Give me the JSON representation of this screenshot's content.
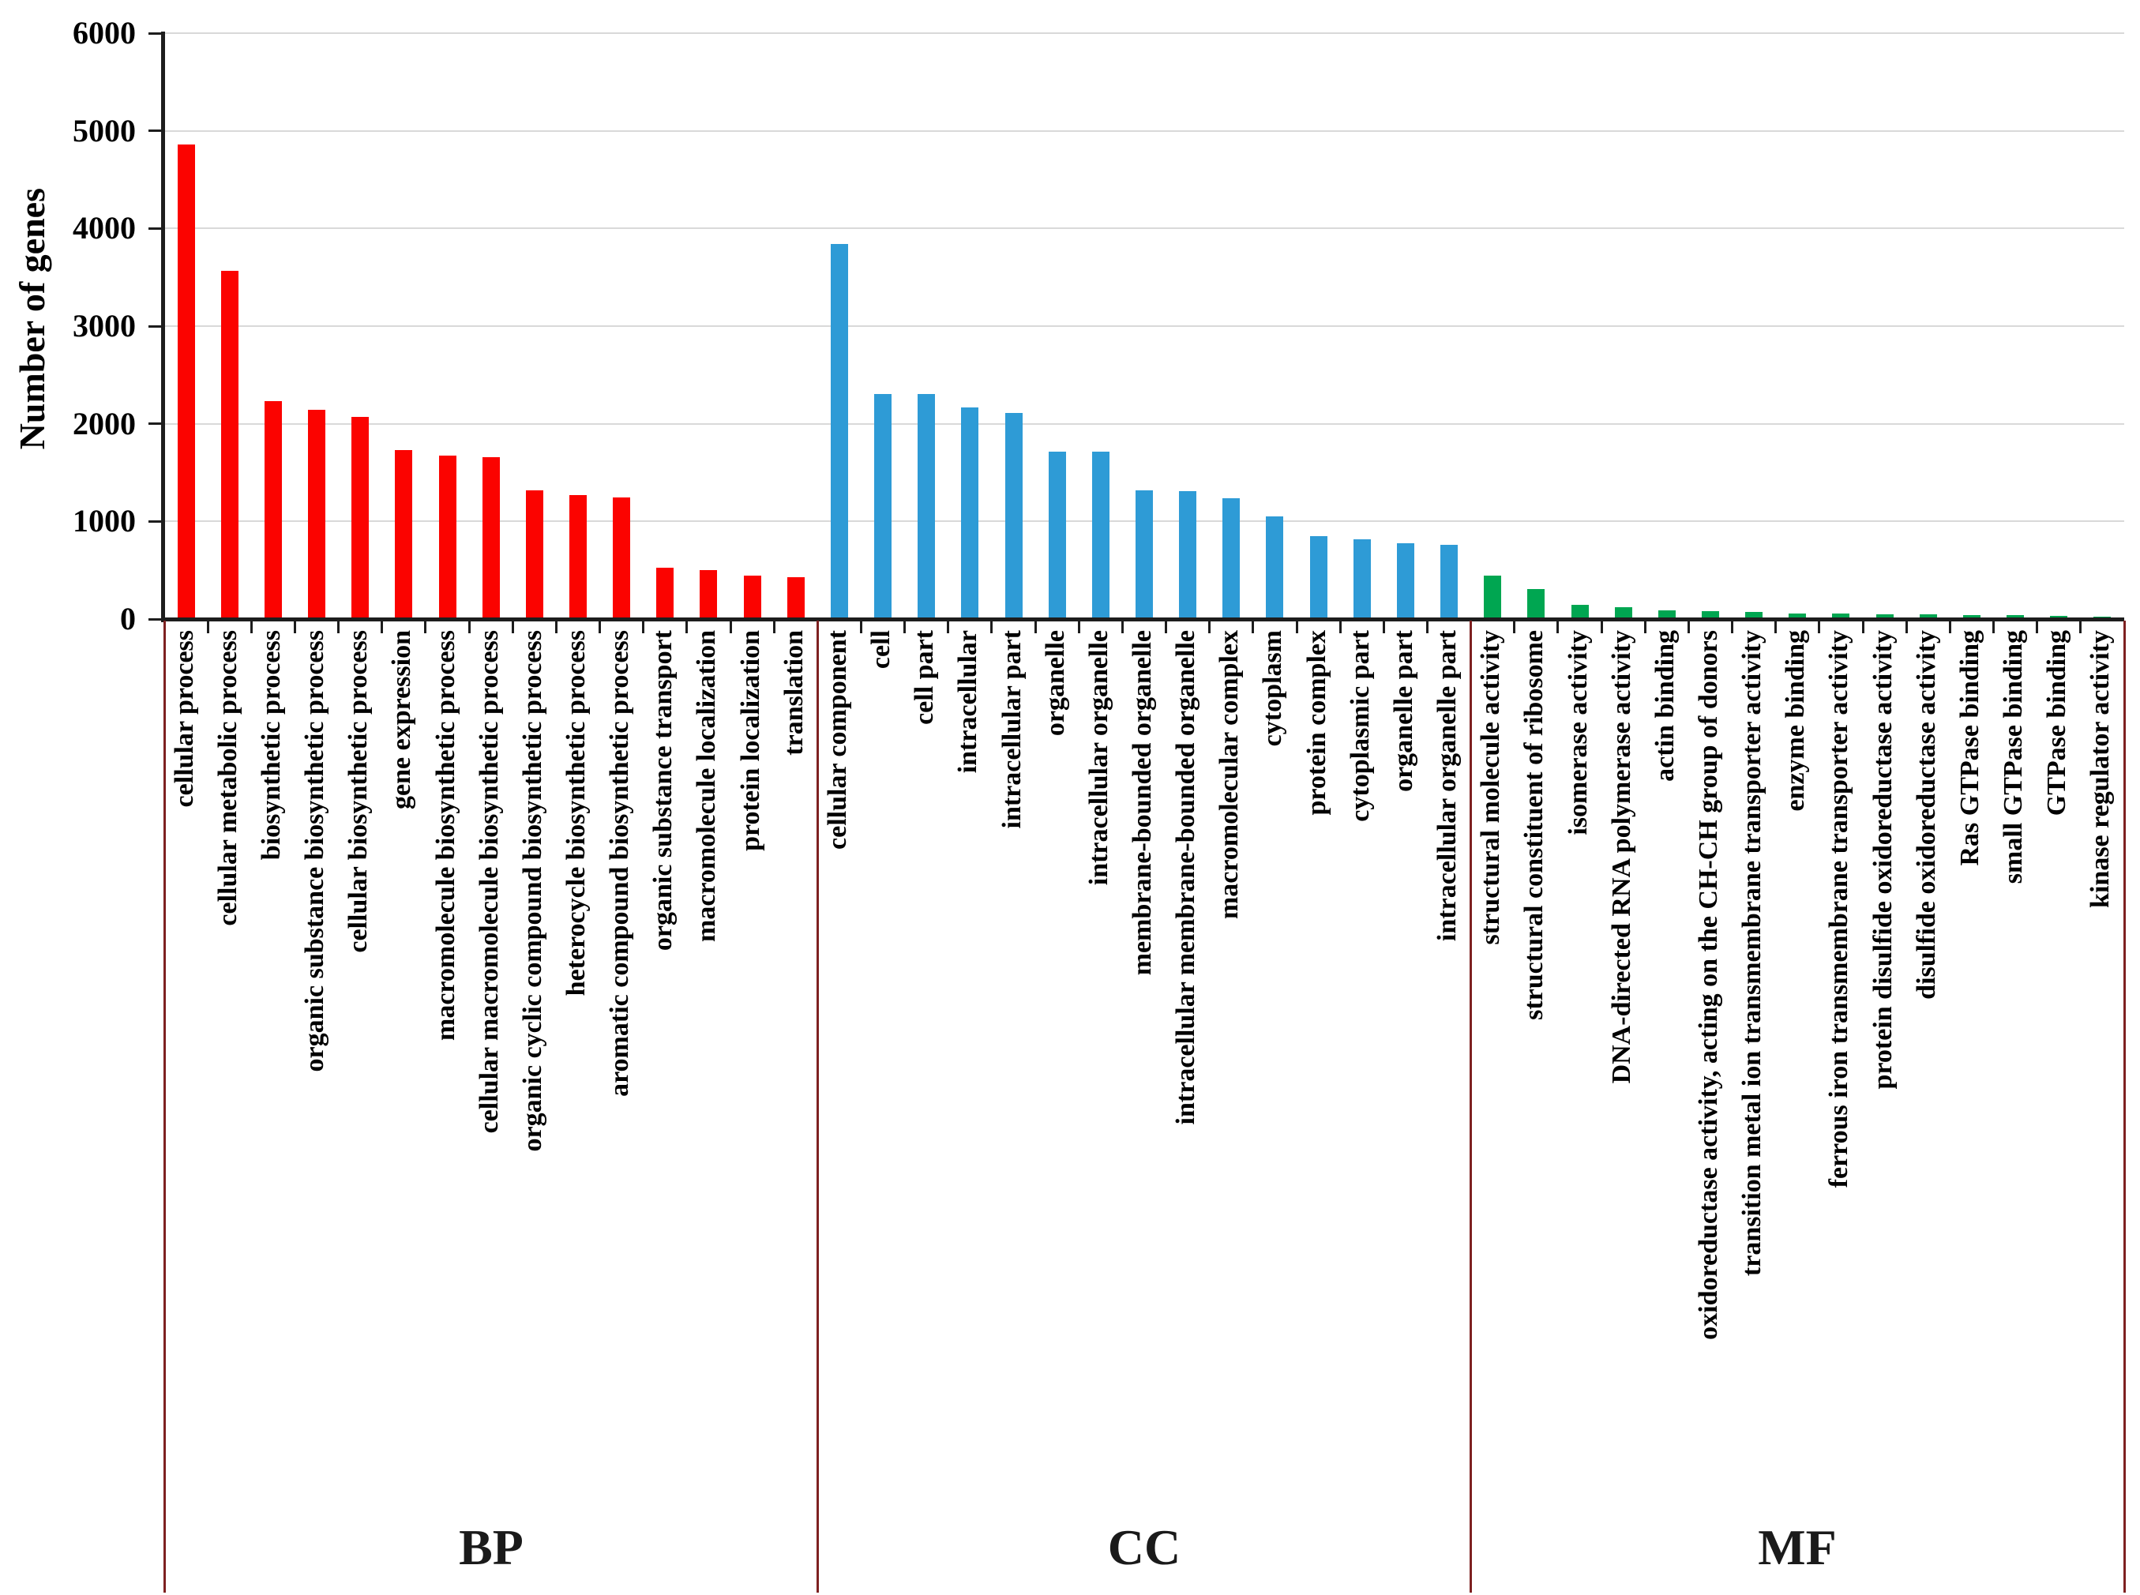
{
  "chart_data": {
    "type": "bar",
    "title": "",
    "ylabel": "Number of genes",
    "xlabel": "",
    "ylim": [
      0,
      6000
    ],
    "ytick_step": 1000,
    "yticks": [
      0,
      1000,
      2000,
      3000,
      4000,
      5000,
      6000
    ],
    "grid": "horizontal",
    "legend_position": "none",
    "gridline_color": "#D9D9D9",
    "axis_color": "#1d1d1d",
    "separator_color": "#7E2121",
    "groups": [
      {
        "name": "BP",
        "color": "#FB0300",
        "categories": [
          "cellular process",
          "cellular metabolic process",
          "biosynthetic process",
          "organic substance biosynthetic process",
          "cellular biosynthetic process",
          "gene expression",
          "macromolecule biosynthetic process",
          "cellular macromolecule biosynthetic process",
          "organic cyclic compound biosynthetic process",
          "heterocycle biosynthetic process",
          "aromatic compound biosynthetic process",
          "organic substance transport",
          "macromolecule localization",
          "protein localization",
          "translation"
        ],
        "values": [
          4850,
          3560,
          2225,
          2135,
          2060,
          1725,
          1665,
          1650,
          1310,
          1260,
          1240,
          520,
          490,
          437,
          420
        ]
      },
      {
        "name": "CC",
        "color": "#2E9BD6",
        "categories": [
          "cellular component",
          "cell",
          "cell part",
          "intracellular",
          "intracellular part",
          "organelle",
          "intracellular organelle",
          "membrane-bounded organelle",
          "intracellular membrane-bounded organelle",
          "macromolecular complex",
          "cytoplasm",
          "protein complex",
          "cytoplasmic part",
          "organelle part",
          "intracellular organelle part"
        ],
        "values": [
          3830,
          2295,
          2300,
          2160,
          2100,
          1710,
          1705,
          1310,
          1305,
          1230,
          1040,
          840,
          805,
          772,
          752
        ]
      },
      {
        "name": "MF",
        "color": "#00A651",
        "categories": [
          "structural molecule activity",
          "structural constituent of ribosome",
          "isomerase activity",
          "DNA-directed RNA polymerase activity",
          "actin binding",
          "oxidoreductase activity, acting on the CH-CH group of donors",
          "transition metal ion transmembrane transporter activity",
          "enzyme binding",
          "ferrous iron transmembrane transporter activity",
          "protein disulfide oxidoreductase activity",
          "disulfide oxidoreductase activity",
          "Ras GTPase binding",
          "small GTPase binding",
          "GTPase binding",
          "kinase regulator activity"
        ],
        "values": [
          440,
          300,
          140,
          110,
          80,
          75,
          65,
          50,
          45,
          42,
          40,
          32,
          30,
          27,
          20
        ]
      }
    ]
  }
}
